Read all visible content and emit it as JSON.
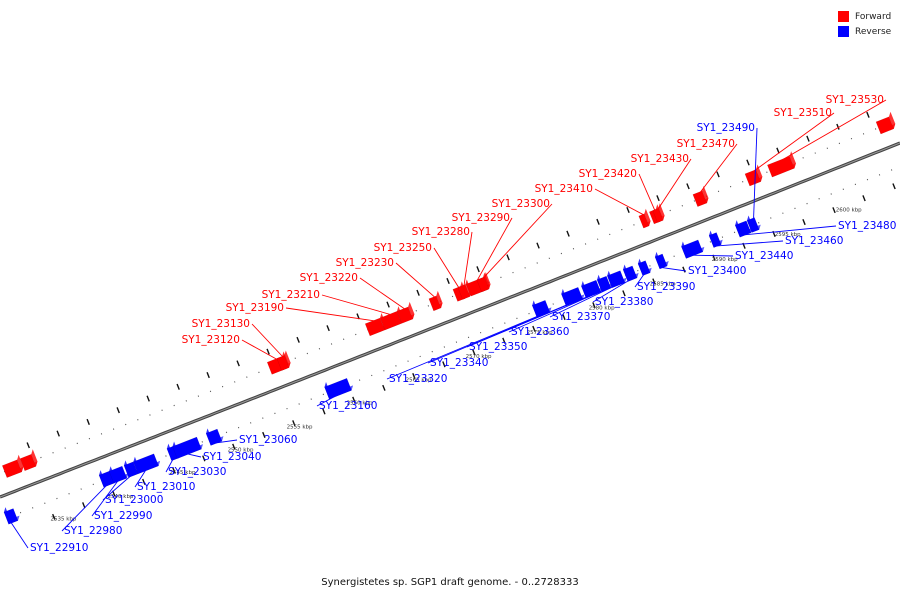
{
  "legend": {
    "forward": {
      "label": "Forward",
      "color": "#ff0000"
    },
    "reverse": {
      "label": "Reverse",
      "color": "#0000ff"
    }
  },
  "caption": "Synergistetes sp. SGP1 draft genome. - 0..2728333",
  "scale_labels": [
    "2535 kbp",
    "2540 kbp",
    "2545 kbp",
    "2550 kbp",
    "2555 kbp",
    "2560 kbp",
    "2565 kbp",
    "2570 kbp",
    "2575 kbp",
    "2580 kbp",
    "2585 kbp",
    "2590 kbp",
    "2595 kbp",
    "2600 kbp"
  ],
  "forward_genes": [
    "SY1_23120",
    "SY1_23130",
    "SY1_23190",
    "SY1_23210",
    "SY1_23220",
    "SY1_23230",
    "SY1_23250",
    "SY1_23280",
    "SY1_23290",
    "SY1_23300",
    "SY1_23410",
    "SY1_23420",
    "SY1_23430",
    "SY1_23470",
    "SY1_23510",
    "SY1_23530"
  ],
  "reverse_genes": [
    "SY1_22910",
    "SY1_22980",
    "SY1_22990",
    "SY1_23000",
    "SY1_23010",
    "SY1_23030",
    "SY1_23040",
    "SY1_23060",
    "SY1_23160",
    "SY1_23320",
    "SY1_23340",
    "SY1_23350",
    "SY1_23360",
    "SY1_23370",
    "SY1_23380",
    "SY1_23390",
    "SY1_23400",
    "SY1_23440",
    "SY1_23460",
    "SY1_23480",
    "SY1_23490"
  ]
}
